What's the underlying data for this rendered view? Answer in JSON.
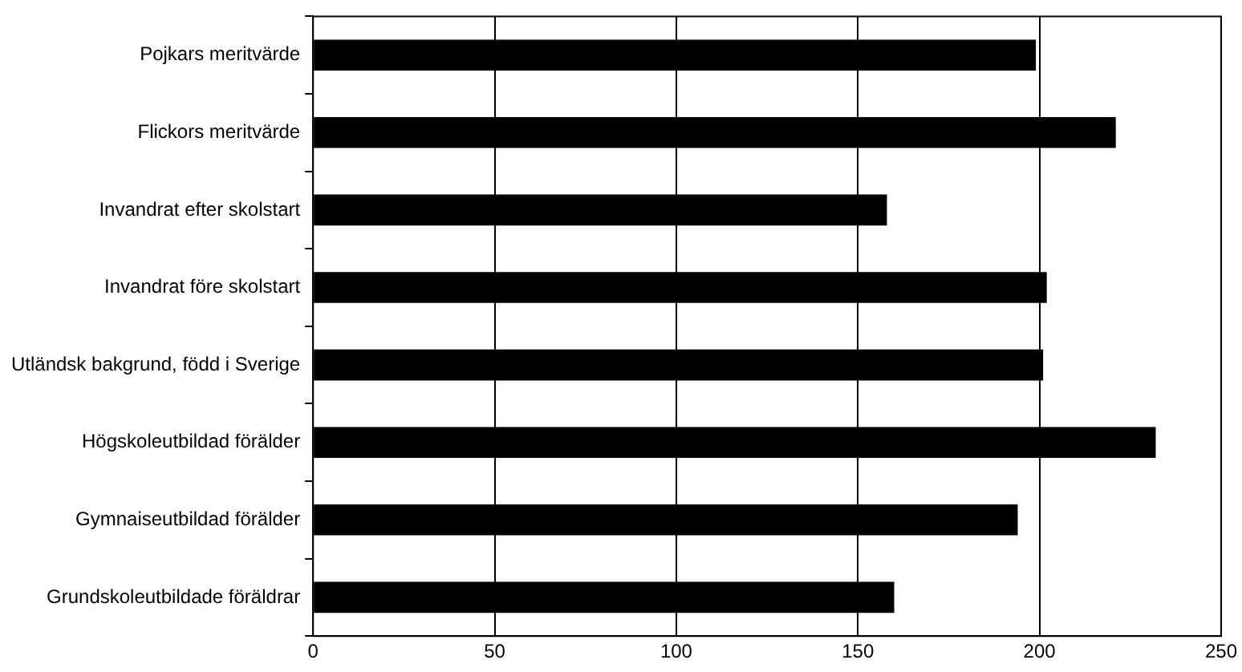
{
  "chart_data": {
    "type": "bar",
    "orientation": "horizontal",
    "categories": [
      "Pojkars meritvärde",
      "Flickors meritvärde",
      "Invandrat efter skolstart",
      "Invandrat före skolstart",
      "Utländsk bakgrund, född i Sverige",
      "Högskoleutbildad förälder",
      "Gymnaiseutbildad förälder",
      "Grundskoleutbildade föräldrar"
    ],
    "values": [
      199,
      221,
      158,
      202,
      201,
      232,
      194,
      160
    ],
    "color": "#000000",
    "xlim": [
      0,
      250
    ],
    "xticks": [
      0,
      50,
      100,
      150,
      200,
      250
    ],
    "grid": "x",
    "legend": false
  }
}
